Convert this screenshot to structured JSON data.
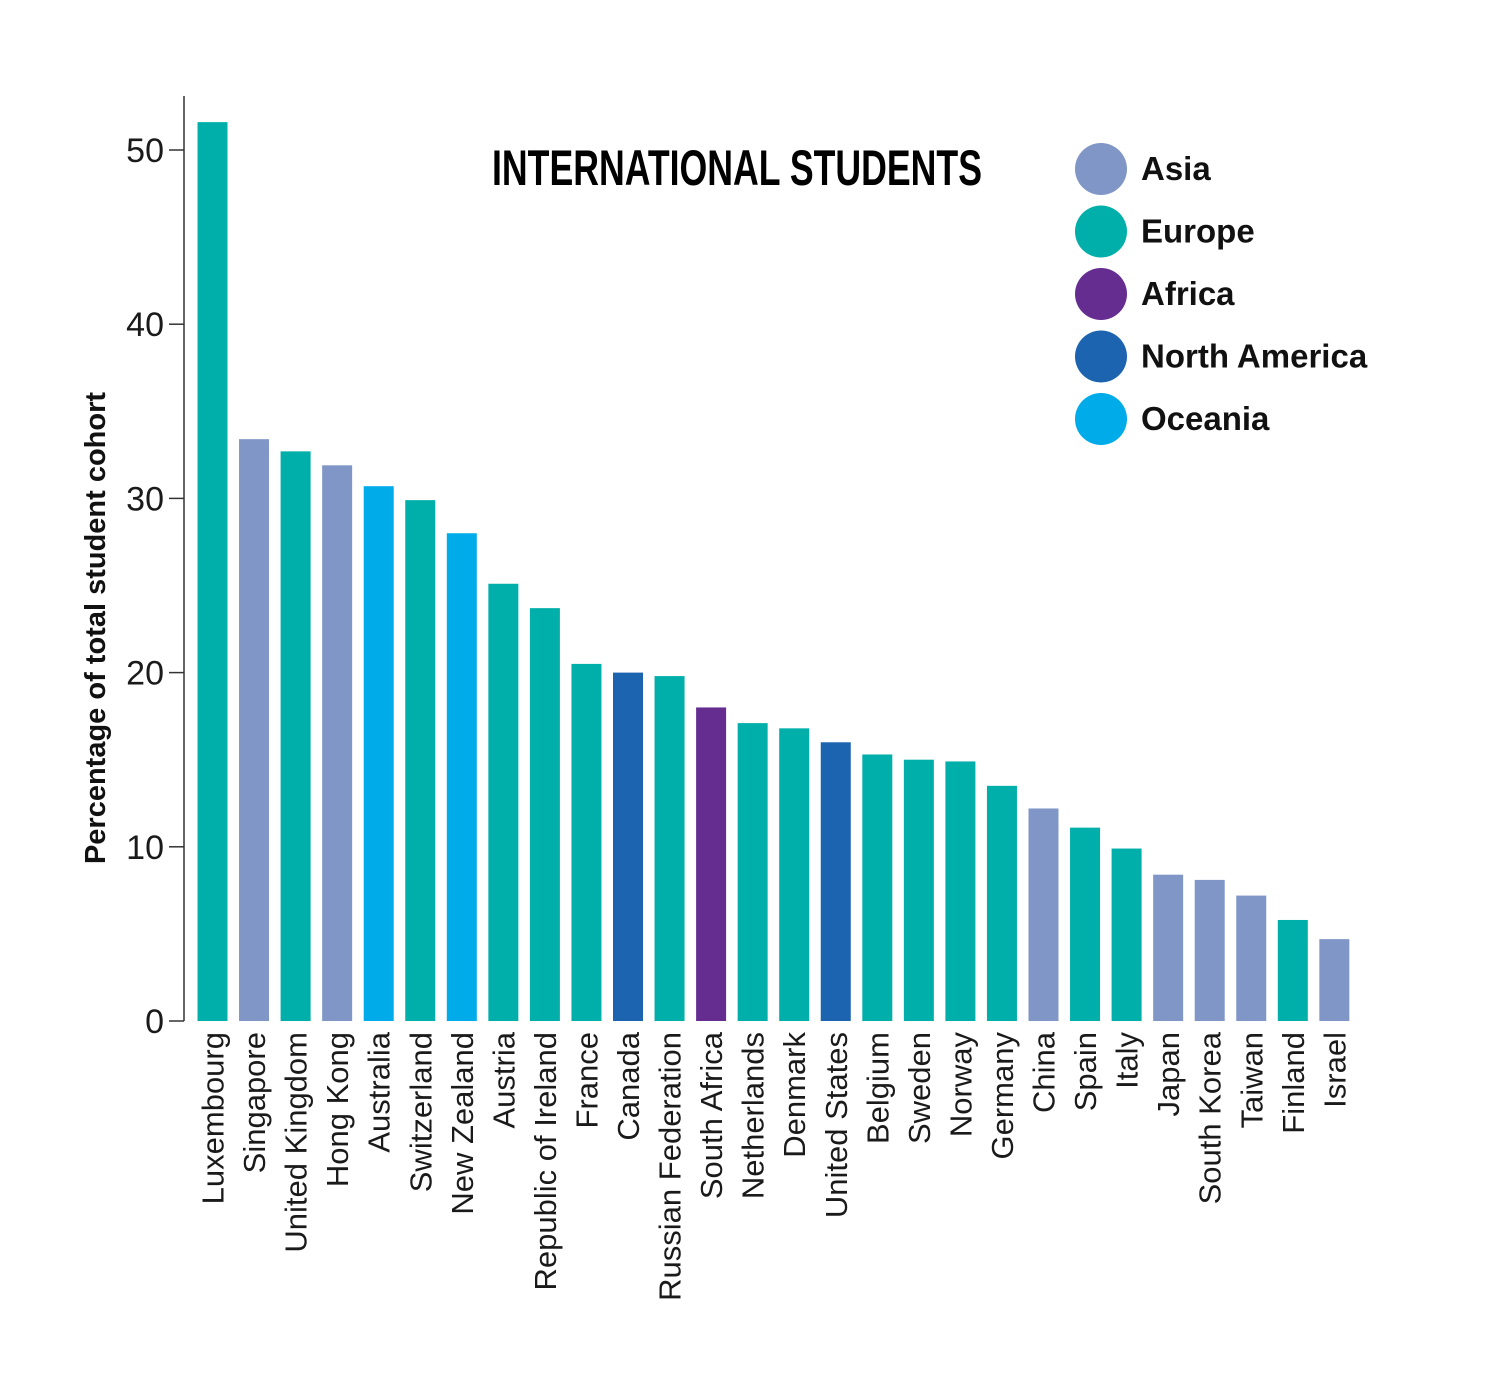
{
  "chart_data": {
    "type": "bar",
    "title": "INTERNATIONAL STUDENTS",
    "ylabel": "Percentage of total student cohort",
    "xlabel": "",
    "ylim": [
      0,
      53
    ],
    "yticks": [
      0,
      10,
      20,
      30,
      40,
      50
    ],
    "grid": false,
    "legend_position": "top-right",
    "regions": [
      {
        "name": "Asia",
        "color": "#8096c6"
      },
      {
        "name": "Europe",
        "color": "#00afaa"
      },
      {
        "name": "Africa",
        "color": "#662d91"
      },
      {
        "name": "North America",
        "color": "#1c64b0"
      },
      {
        "name": "Oceania",
        "color": "#00abe9"
      }
    ],
    "categories": [
      "Luxembourg",
      "Singapore",
      "United Kingdom",
      "Hong Kong",
      "Australia",
      "Switzerland",
      "New Zealand",
      "Austria",
      "Republic of Ireland",
      "France",
      "Canada",
      "Russian Federation",
      "South Africa",
      "Netherlands",
      "Denmark",
      "United States",
      "Belgium",
      "Sweden",
      "Norway",
      "Germany",
      "China",
      "Spain",
      "Italy",
      "Japan",
      "South Korea",
      "Taiwan",
      "Finland",
      "Israel"
    ],
    "values": [
      51.6,
      33.4,
      32.7,
      31.9,
      30.7,
      29.9,
      28.0,
      25.1,
      23.7,
      20.5,
      20.0,
      19.8,
      18.0,
      17.1,
      16.8,
      16.0,
      15.3,
      15.0,
      14.9,
      13.5,
      12.2,
      11.1,
      9.9,
      8.4,
      8.1,
      7.2,
      5.8,
      4.7
    ],
    "bar_regions": [
      "Europe",
      "Asia",
      "Europe",
      "Asia",
      "Oceania",
      "Europe",
      "Oceania",
      "Europe",
      "Europe",
      "Europe",
      "North America",
      "Europe",
      "Africa",
      "Europe",
      "Europe",
      "North America",
      "Europe",
      "Europe",
      "Europe",
      "Europe",
      "Asia",
      "Europe",
      "Europe",
      "Asia",
      "Asia",
      "Asia",
      "Europe",
      "Asia"
    ]
  }
}
